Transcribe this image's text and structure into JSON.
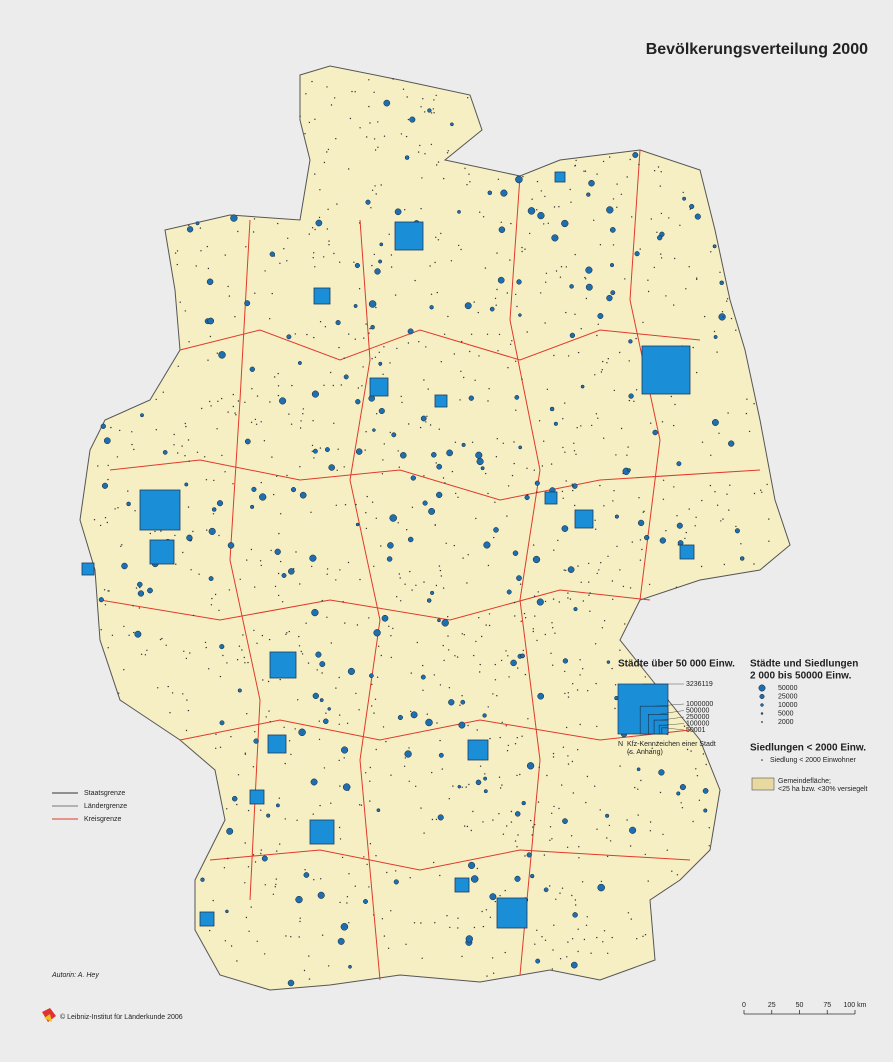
{
  "map": {
    "title": "Bevölkerungsverteilung 2000",
    "legend_cities": {
      "heading": "Städte über 50 000 Einw.",
      "values": [
        3236119,
        1000000,
        500000,
        250000,
        100000,
        50001
      ],
      "note_symbol": "N",
      "note": "Kfz-Kennzeichen einer Stadt",
      "note2": "(s. Anhang)"
    },
    "legend_towns": {
      "heading": "Städte und Siedlungen",
      "heading2": "2 000 bis 50000 Einw.",
      "values": [
        50000,
        25000,
        10000,
        5000,
        2000
      ]
    },
    "legend_small": {
      "heading": "Siedlungen < 2000 Einw.",
      "item": "Siedlung < 2000 Einwohner"
    },
    "legend_area": {
      "line1": "Gemeindefläche;",
      "line2": "<25 ha bzw. <30% versiegelt"
    },
    "legend_lines": [
      "Staatsgrenze",
      "Ländergrenze",
      "Kreisgrenze"
    ],
    "author": "Autorin:  A. Hey",
    "copyright": "© Leibniz-Institut für Länderkunde 2006",
    "scale": {
      "ticks": [
        0,
        25,
        50,
        75,
        {
          "value": 100,
          "label": "100 km"
        }
      ]
    }
  }
}
